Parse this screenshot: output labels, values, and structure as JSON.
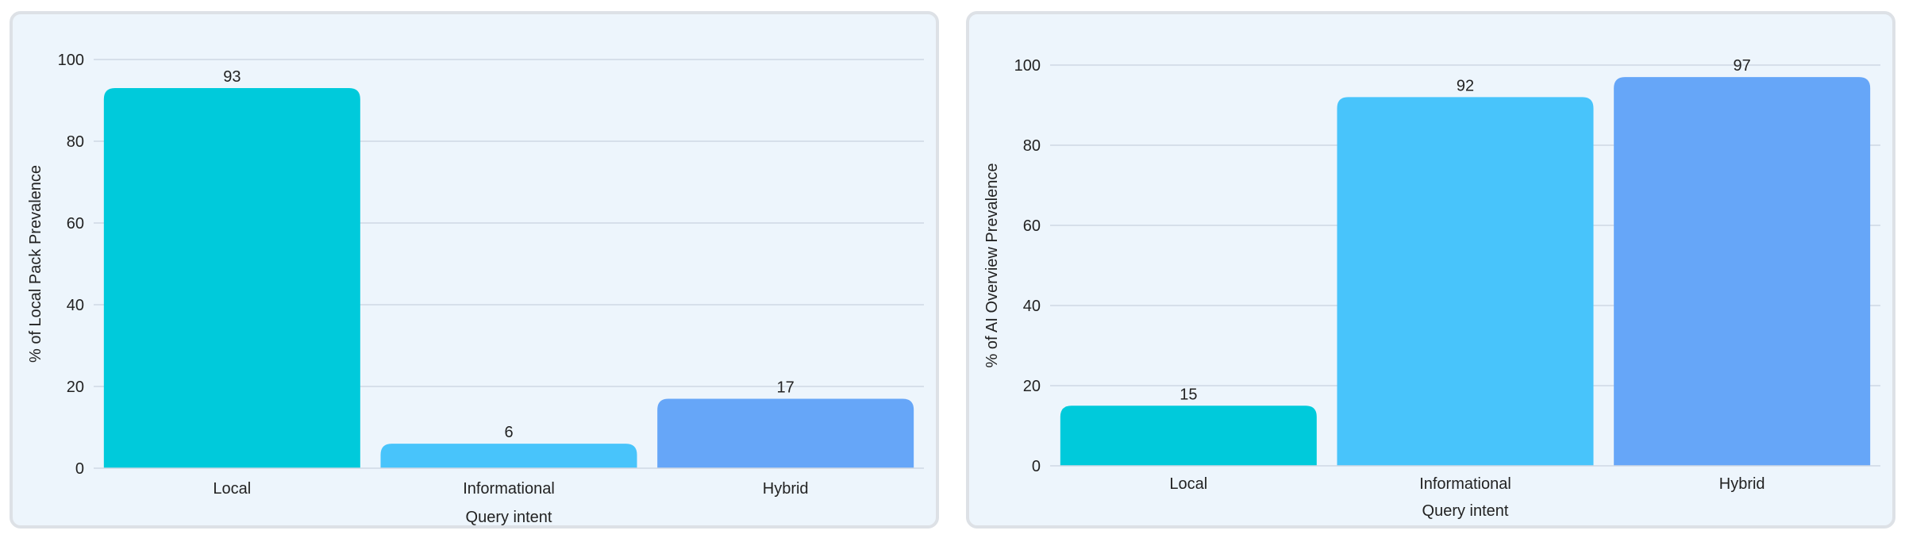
{
  "chart_data": [
    {
      "type": "bar",
      "categories": [
        "Local",
        "Informational",
        "Hybrid"
      ],
      "values": [
        93,
        6,
        17
      ],
      "colors": [
        "#00cadb",
        "#48c4fb",
        "#66a6f8"
      ],
      "xlabel": "Query intent",
      "ylabel": "% of Local Pack Prevalence",
      "ylim": [
        0,
        100
      ],
      "yticks": [
        0,
        20,
        40,
        60,
        80,
        100
      ],
      "ytick_labels": [
        "0",
        "20",
        "40",
        "60",
        "80",
        "100"
      ],
      "data_labels": [
        "93",
        "6",
        "17"
      ],
      "grid": true,
      "legend": "none"
    },
    {
      "type": "bar",
      "categories": [
        "Local",
        "Informational",
        "Hybrid"
      ],
      "values": [
        15,
        92,
        97
      ],
      "colors": [
        "#00cadb",
        "#48c4fb",
        "#66a6f8"
      ],
      "xlabel": "Query intent",
      "ylabel": "% of AI Overview Prevalence",
      "ylim": [
        0,
        100
      ],
      "yticks": [
        0,
        20,
        40,
        60,
        80,
        100
      ],
      "ytick_labels": [
        "0",
        "20",
        "40",
        "60",
        "80",
        "100"
      ],
      "data_labels": [
        "15",
        "92",
        "97"
      ],
      "grid": true,
      "legend": "none"
    }
  ]
}
